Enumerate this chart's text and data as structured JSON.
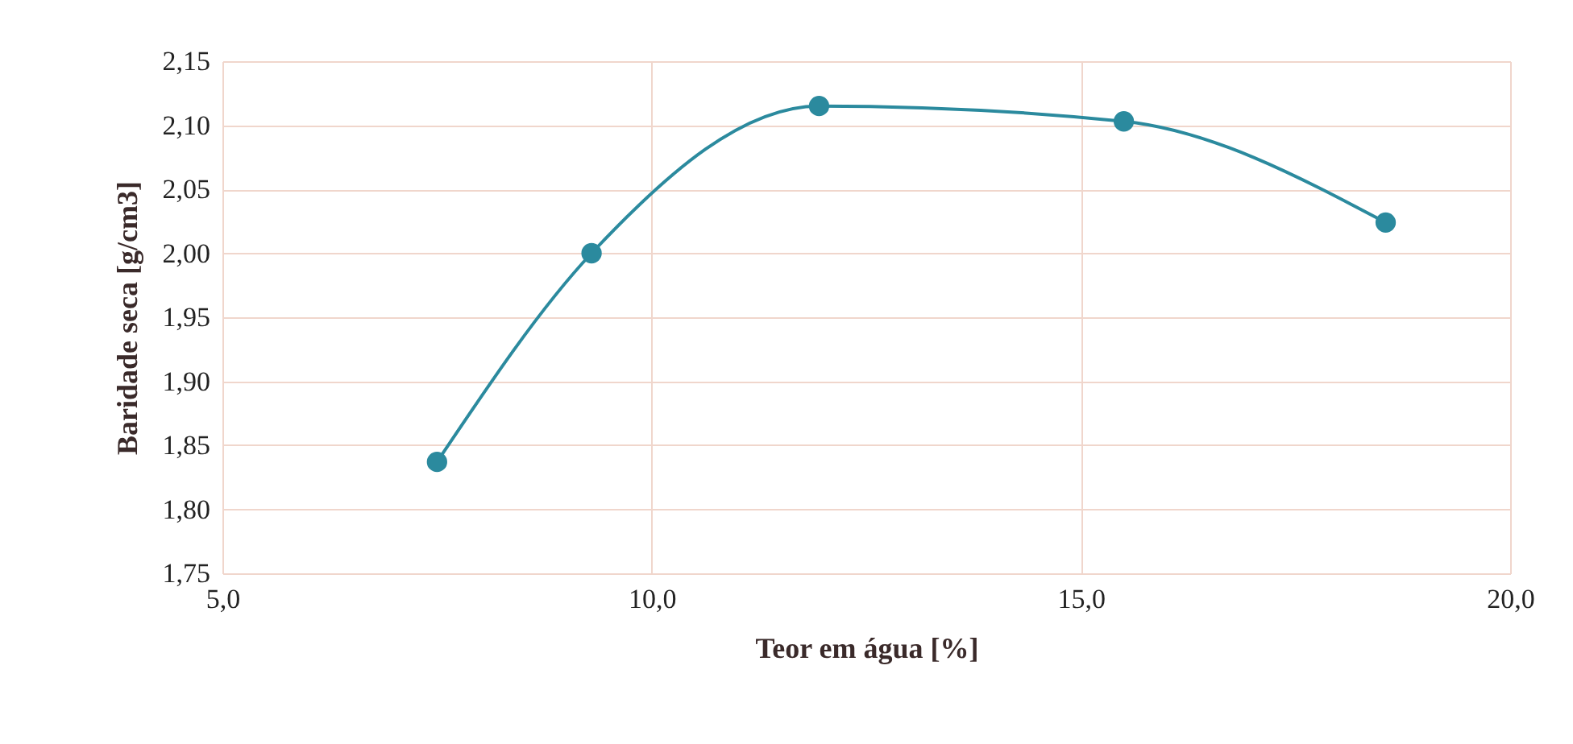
{
  "chart_data": {
    "type": "line",
    "xlabel": "Teor em água [%]",
    "ylabel": "Baridade seca [g/cm3]",
    "x": [
      7.5,
      9.3,
      11.95,
      15.5,
      18.55
    ],
    "series": [
      {
        "color": "#2b8a9e",
        "values": [
          1.837,
          2.0,
          2.115,
          2.103,
          2.024
        ]
      }
    ],
    "xlim": [
      5,
      20
    ],
    "xticks": [
      {
        "value": 5,
        "label": "5,0"
      },
      {
        "value": 10,
        "label": "10,0"
      },
      {
        "value": 15,
        "label": "15,0"
      },
      {
        "value": 20,
        "label": "20,0"
      }
    ],
    "ylim": [
      1.75,
      2.15
    ],
    "yticks": [
      {
        "value": 1.75,
        "label": "1,75"
      },
      {
        "value": 1.8,
        "label": "1,80"
      },
      {
        "value": 1.85,
        "label": "1,85"
      },
      {
        "value": 1.9,
        "label": "1,90"
      },
      {
        "value": 1.95,
        "label": "1,95"
      },
      {
        "value": 2.0,
        "label": "2,00"
      },
      {
        "value": 2.05,
        "label": "2,05"
      },
      {
        "value": 2.1,
        "label": "2,10"
      },
      {
        "value": 2.15,
        "label": "2,15"
      }
    ],
    "grid": true,
    "marker": "circle",
    "line_style": "solid"
  }
}
